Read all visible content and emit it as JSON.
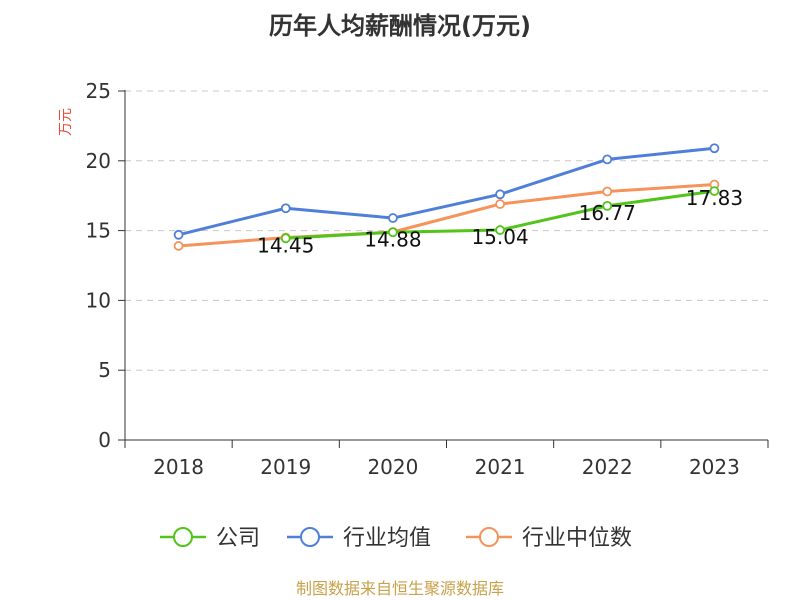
{
  "chart_data": {
    "type": "line",
    "title": "历年人均薪酬情况(万元)",
    "ylabel": "万元",
    "xlabel": "",
    "categories": [
      "2018",
      "2019",
      "2020",
      "2021",
      "2022",
      "2023"
    ],
    "ylim": [
      0,
      25
    ],
    "yticks": [
      0,
      5,
      10,
      15,
      20,
      25
    ],
    "grid": true,
    "legend_position": "bottom",
    "series": [
      {
        "name": "公司",
        "color": "#52c41a",
        "values": [
          null,
          14.45,
          14.88,
          15.04,
          16.77,
          17.83
        ],
        "labels": [
          null,
          "14.45",
          "14.88",
          "15.04",
          "16.77",
          "17.83"
        ]
      },
      {
        "name": "行业均值",
        "color": "#4f7fd9",
        "values": [
          14.7,
          16.6,
          15.9,
          17.6,
          20.1,
          20.9
        ]
      },
      {
        "name": "行业中位数",
        "color": "#f5935a",
        "values": [
          13.9,
          14.5,
          14.9,
          16.9,
          17.8,
          18.3
        ]
      }
    ]
  },
  "source": "制图数据来自恒生聚源数据库"
}
